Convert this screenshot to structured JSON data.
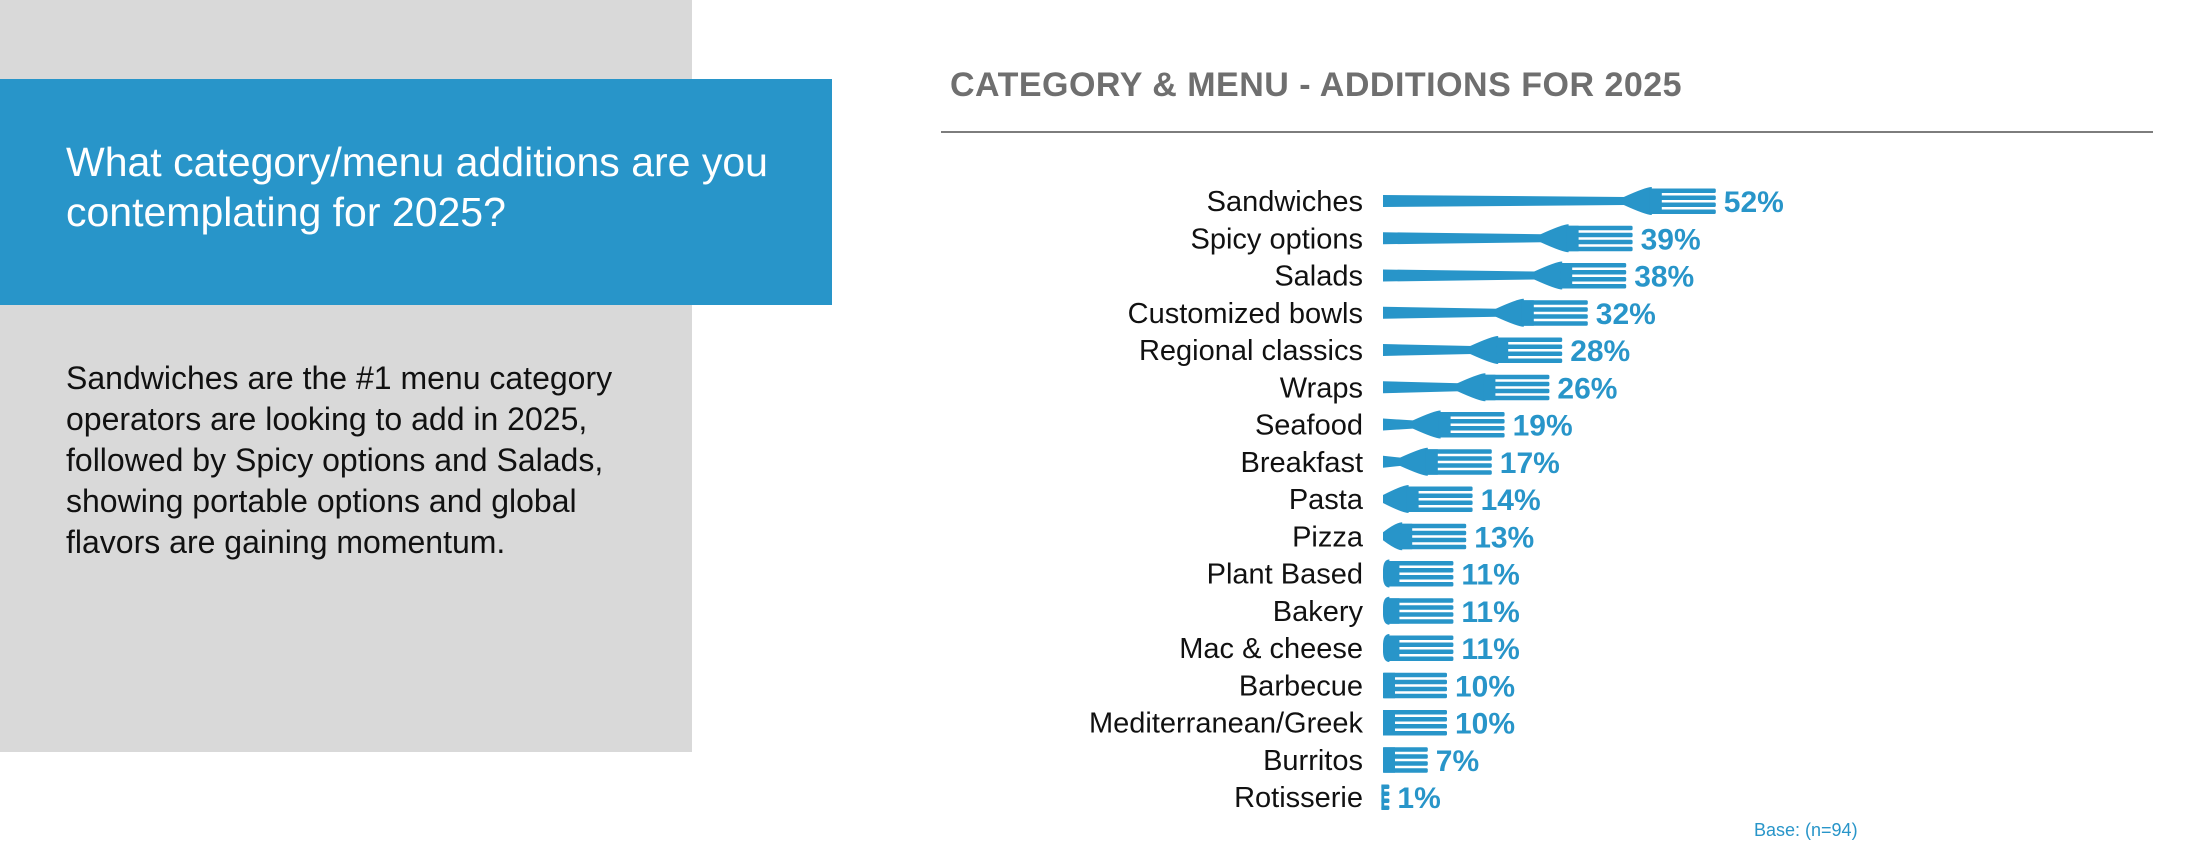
{
  "left": {
    "question": "What category/menu additions are you contemplating for 2025?",
    "summary": "Sandwiches are the #1 menu category operators are looking to add in 2025, followed by Spicy options and Salads, showing portable options and global flavors are gaining momentum."
  },
  "colors": {
    "accent": "#2895c9",
    "panel": "#d9d9d9",
    "title_gray": "#6f6f6f"
  },
  "chart_data": {
    "type": "bar",
    "title": "CATEGORY & MENU - ADDITIONS FOR 2025",
    "unit": "%",
    "orientation": "horizontal",
    "mark": "fork-icon",
    "categories": [
      "Sandwiches",
      "Spicy options",
      "Salads",
      "Customized bowls",
      "Regional classics",
      "Wraps",
      "Seafood",
      "Breakfast",
      "Pasta",
      "Pizza",
      "Plant Based",
      "Bakery",
      "Mac & cheese",
      "Barbecue",
      "Mediterranean/Greek",
      "Burritos",
      "Rotisserie"
    ],
    "values": [
      52,
      39,
      38,
      32,
      28,
      26,
      19,
      17,
      14,
      13,
      11,
      11,
      11,
      10,
      10,
      7,
      1
    ],
    "value_labels": [
      "52%",
      "39%",
      "38%",
      "32%",
      "28%",
      "26%",
      "19%",
      "17%",
      "14%",
      "13%",
      "11%",
      "11%",
      "11%",
      "10%",
      "10%",
      "7%",
      "1%"
    ],
    "base_note": "Base: (n=94)",
    "xlabel": "",
    "ylabel": ""
  }
}
